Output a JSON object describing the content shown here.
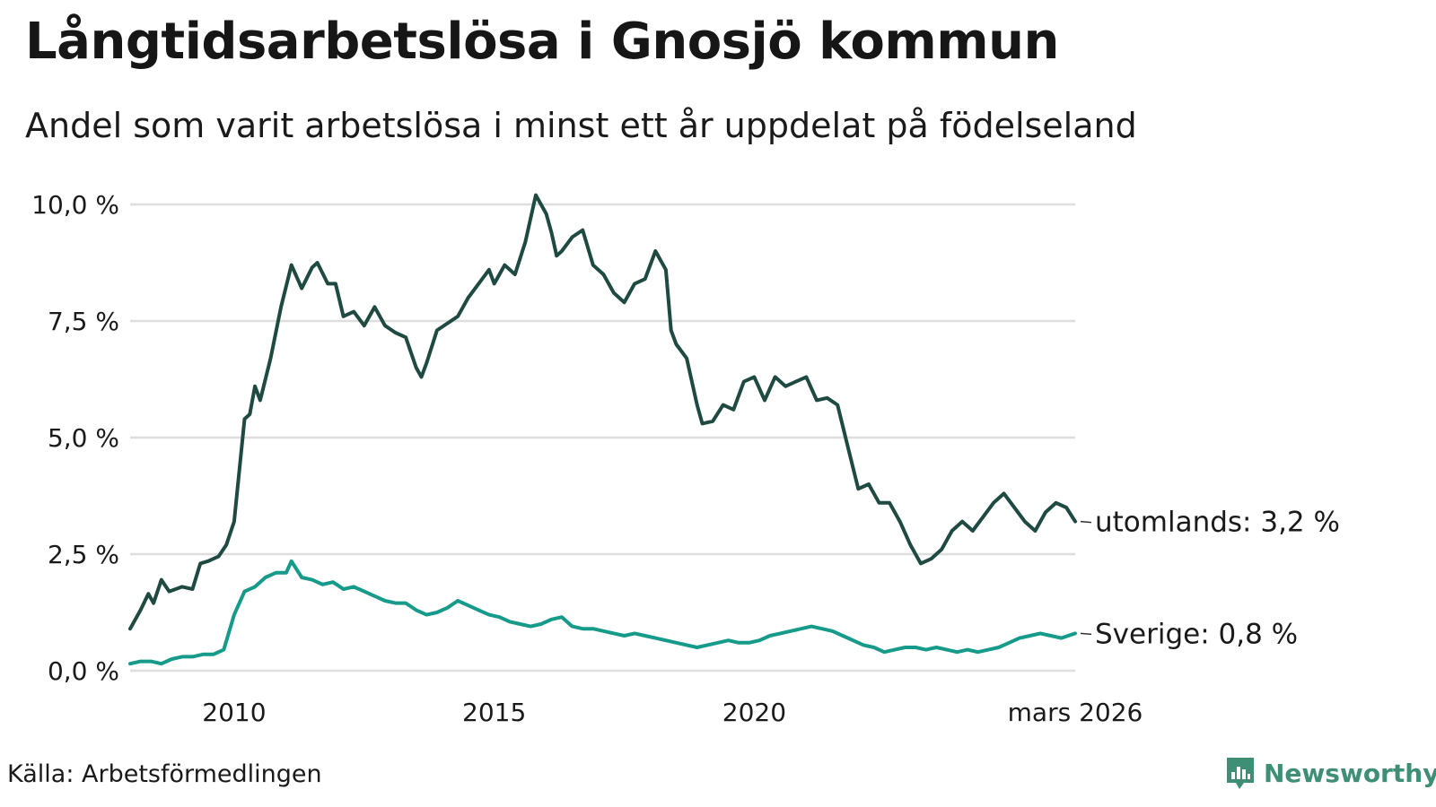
{
  "title": "Långtidsarbetslösa i Gnosjö kommun",
  "subtitle": "Andel som varit arbetslösa i minst ett år uppdelat på födelseland",
  "source": "Källa: Arbetsförmedlingen",
  "brand": "Newsworthy",
  "colors": {
    "utomlands": "#1f4a42",
    "sverige": "#169a8a",
    "grid": "#dedede",
    "brand": "#3f8f76"
  },
  "chart_data": {
    "type": "line",
    "title": "Långtidsarbetslösa i Gnosjö kommun",
    "xlabel": "",
    "ylabel": "",
    "xlim": [
      2008.0,
      2026.17
    ],
    "ylim": [
      0,
      10
    ],
    "y_ticks": [
      0,
      2.5,
      5,
      7.5,
      10
    ],
    "y_tick_labels": [
      "0,0 %",
      "2,5 %",
      "5,0 %",
      "7,5 %",
      "10,0 %"
    ],
    "x_ticks": [
      2010,
      2015,
      2020,
      2026.17
    ],
    "x_tick_labels": [
      "2010",
      "2015",
      "2020",
      "mars 2026"
    ],
    "grid": true,
    "series": [
      {
        "name": "utomlands",
        "end_label": "utomlands: 3,2 %",
        "x": [
          2008.0,
          2008.2,
          2008.35,
          2008.45,
          2008.6,
          2008.75,
          2009.0,
          2009.2,
          2009.35,
          2009.5,
          2009.7,
          2009.85,
          2010.0,
          2010.1,
          2010.2,
          2010.3,
          2010.4,
          2010.5,
          2010.7,
          2010.9,
          2011.1,
          2011.3,
          2011.5,
          2011.6,
          2011.8,
          2011.95,
          2012.1,
          2012.3,
          2012.5,
          2012.7,
          2012.9,
          2013.1,
          2013.3,
          2013.5,
          2013.6,
          2013.7,
          2013.9,
          2014.1,
          2014.3,
          2014.5,
          2014.7,
          2014.9,
          2015.0,
          2015.2,
          2015.4,
          2015.6,
          2015.8,
          2016.0,
          2016.1,
          2016.2,
          2016.3,
          2016.5,
          2016.7,
          2016.9,
          2017.1,
          2017.3,
          2017.5,
          2017.7,
          2017.9,
          2018.1,
          2018.3,
          2018.4,
          2018.5,
          2018.7,
          2018.9,
          2019.0,
          2019.2,
          2019.4,
          2019.6,
          2019.8,
          2020.0,
          2020.2,
          2020.4,
          2020.6,
          2020.8,
          2021.0,
          2021.2,
          2021.4,
          2021.6,
          2021.8,
          2022.0,
          2022.2,
          2022.4,
          2022.6,
          2022.8,
          2023.0,
          2023.2,
          2023.4,
          2023.6,
          2023.8,
          2024.0,
          2024.2,
          2024.4,
          2024.6,
          2024.8,
          2025.0,
          2025.2,
          2025.4,
          2025.6,
          2025.8,
          2026.0,
          2026.17
        ],
        "values": [
          0.9,
          1.3,
          1.65,
          1.45,
          1.95,
          1.7,
          1.8,
          1.75,
          2.3,
          2.35,
          2.45,
          2.7,
          3.2,
          4.3,
          5.4,
          5.5,
          6.1,
          5.8,
          6.7,
          7.8,
          8.7,
          8.2,
          8.65,
          8.75,
          8.3,
          8.3,
          7.6,
          7.7,
          7.4,
          7.8,
          7.4,
          7.25,
          7.15,
          6.5,
          6.3,
          6.6,
          7.3,
          7.45,
          7.6,
          8.0,
          8.3,
          8.6,
          8.3,
          8.7,
          8.5,
          9.2,
          10.2,
          9.8,
          9.4,
          8.9,
          9.0,
          9.3,
          9.45,
          8.7,
          8.5,
          8.1,
          7.9,
          8.3,
          8.4,
          9.0,
          8.6,
          7.3,
          7.0,
          6.7,
          5.7,
          5.3,
          5.35,
          5.7,
          5.6,
          6.2,
          6.3,
          5.8,
          6.3,
          6.1,
          6.2,
          6.3,
          5.8,
          5.85,
          5.7,
          4.8,
          3.9,
          4.0,
          3.6,
          3.6,
          3.2,
          2.7,
          2.3,
          2.4,
          2.6,
          3.0,
          3.2,
          3.0,
          3.3,
          3.6,
          3.8,
          3.5,
          3.2,
          3.0,
          3.4,
          3.6,
          3.5,
          3.2
        ]
      },
      {
        "name": "Sverige",
        "end_label": "Sverige: 0,8 %",
        "x": [
          2008.0,
          2008.2,
          2008.4,
          2008.6,
          2008.8,
          2009.0,
          2009.2,
          2009.4,
          2009.6,
          2009.8,
          2010.0,
          2010.2,
          2010.4,
          2010.6,
          2010.8,
          2011.0,
          2011.1,
          2011.3,
          2011.5,
          2011.7,
          2011.9,
          2012.1,
          2012.3,
          2012.5,
          2012.7,
          2012.9,
          2013.1,
          2013.3,
          2013.5,
          2013.7,
          2013.9,
          2014.1,
          2014.3,
          2014.5,
          2014.7,
          2014.9,
          2015.1,
          2015.3,
          2015.5,
          2015.7,
          2015.9,
          2016.1,
          2016.3,
          2016.5,
          2016.7,
          2016.9,
          2017.1,
          2017.3,
          2017.5,
          2017.7,
          2017.9,
          2018.1,
          2018.3,
          2018.5,
          2018.7,
          2018.9,
          2019.1,
          2019.3,
          2019.5,
          2019.7,
          2019.9,
          2020.1,
          2020.3,
          2020.5,
          2020.7,
          2020.9,
          2021.1,
          2021.3,
          2021.5,
          2021.7,
          2021.9,
          2022.1,
          2022.3,
          2022.5,
          2022.7,
          2022.9,
          2023.1,
          2023.3,
          2023.5,
          2023.7,
          2023.9,
          2024.1,
          2024.3,
          2024.5,
          2024.7,
          2024.9,
          2025.1,
          2025.3,
          2025.5,
          2025.7,
          2025.9,
          2026.17
        ],
        "values": [
          0.15,
          0.2,
          0.2,
          0.15,
          0.25,
          0.3,
          0.3,
          0.35,
          0.35,
          0.45,
          1.2,
          1.7,
          1.8,
          2.0,
          2.1,
          2.1,
          2.35,
          2.0,
          1.95,
          1.85,
          1.9,
          1.75,
          1.8,
          1.7,
          1.6,
          1.5,
          1.45,
          1.45,
          1.3,
          1.2,
          1.25,
          1.35,
          1.5,
          1.4,
          1.3,
          1.2,
          1.15,
          1.05,
          1.0,
          0.95,
          1.0,
          1.1,
          1.15,
          0.95,
          0.9,
          0.9,
          0.85,
          0.8,
          0.75,
          0.8,
          0.75,
          0.7,
          0.65,
          0.6,
          0.55,
          0.5,
          0.55,
          0.6,
          0.65,
          0.6,
          0.6,
          0.65,
          0.75,
          0.8,
          0.85,
          0.9,
          0.95,
          0.9,
          0.85,
          0.75,
          0.65,
          0.55,
          0.5,
          0.4,
          0.45,
          0.5,
          0.5,
          0.45,
          0.5,
          0.45,
          0.4,
          0.45,
          0.4,
          0.45,
          0.5,
          0.6,
          0.7,
          0.75,
          0.8,
          0.75,
          0.7,
          0.8
        ]
      }
    ]
  }
}
